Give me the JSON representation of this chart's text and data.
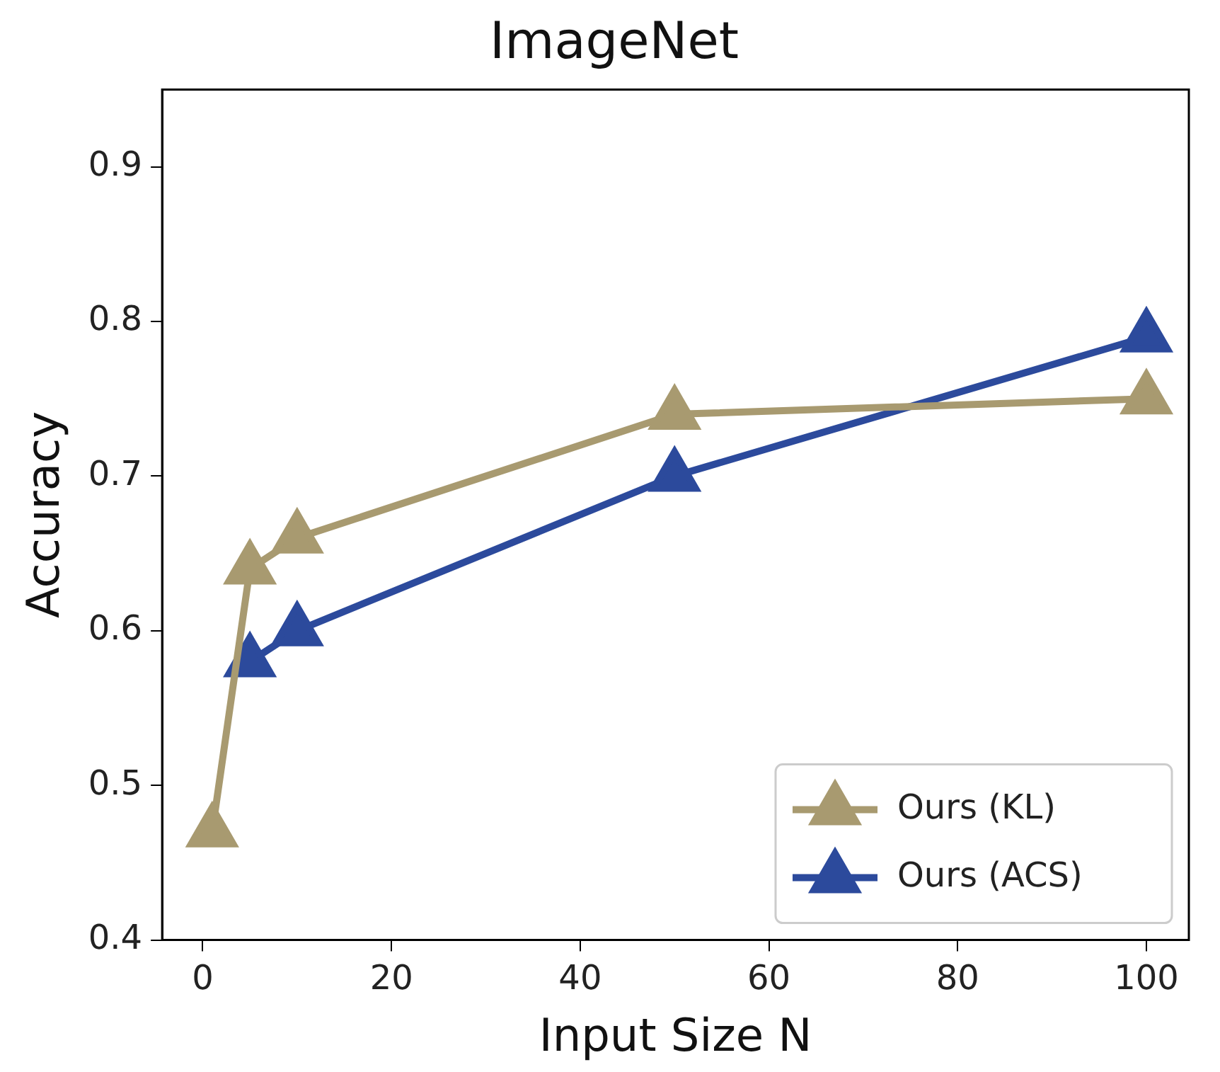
{
  "chart_data": {
    "type": "line",
    "title": "ImageNet",
    "xlabel": "Input Size N",
    "ylabel": "Accuracy",
    "series": [
      {
        "name": "Ours (KL)",
        "color": "#a89a70",
        "x": [
          1,
          5,
          10,
          50,
          100
        ],
        "values": [
          0.47,
          0.64,
          0.66,
          0.74,
          0.75
        ]
      },
      {
        "name": "Ours (ACS)",
        "color": "#2c4a9c",
        "x": [
          5,
          10,
          50,
          100
        ],
        "values": [
          0.58,
          0.6,
          0.7,
          0.79
        ]
      }
    ],
    "xlim": [
      -4.3,
      104.5
    ],
    "xticks": [
      0,
      20,
      40,
      60,
      80,
      100
    ],
    "ylim": [
      0.4,
      0.95
    ],
    "yticks": [
      0.4,
      0.5,
      0.6,
      0.7,
      0.8,
      0.9
    ],
    "grid": false,
    "legend": "bottom right",
    "marker": "triangle",
    "line_style": "solid"
  }
}
